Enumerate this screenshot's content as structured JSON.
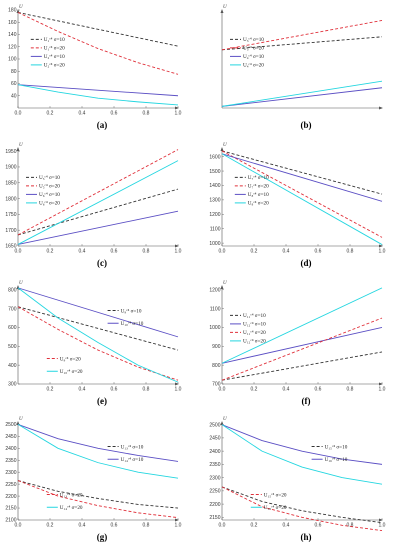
{
  "chart_data": [
    {
      "panel": "(a)",
      "type": "line",
      "ylabel": "U",
      "xlabel": "",
      "xlim": [
        0,
        1
      ],
      "ylim": [
        20,
        180
      ],
      "xticks": [
        "0.0",
        "0.2",
        "0.4",
        "0.6",
        "0.8",
        "1.0"
      ],
      "xtick_vals": [
        0,
        0.2,
        0.4,
        0.6,
        0.8,
        1.0
      ],
      "yticks": [
        "40",
        "60",
        "80",
        "100",
        "120",
        "140",
        "160",
        "180"
      ],
      "ytick_vals": [
        40,
        60,
        80,
        100,
        120,
        140,
        160,
        180
      ],
      "legend_pos": "right",
      "series": [
        {
          "name": "U₁ᶜ⁴ σ=10",
          "color": "#333333",
          "dash": "3,2",
          "x": [
            0,
            1
          ],
          "y": [
            176,
            121
          ]
        },
        {
          "name": "U₁ᶜ⁴ σ=20",
          "color": "#e0303a",
          "dash": "3,2",
          "x": [
            0,
            0.25,
            0.5,
            0.75,
            1
          ],
          "y": [
            176,
            145,
            117,
            94,
            75
          ]
        },
        {
          "name": "U₂ᶜ⁴ σ=10",
          "color": "#5b4fc4",
          "dash": "",
          "x": [
            0,
            1
          ],
          "y": [
            58,
            40
          ]
        },
        {
          "name": "U₂ᶜ⁴ σ=20",
          "color": "#24d6e0",
          "dash": "",
          "x": [
            0,
            0.25,
            0.5,
            0.75,
            1
          ],
          "y": [
            58,
            46,
            36,
            30,
            25
          ]
        }
      ]
    },
    {
      "panel": "(b)",
      "type": "line",
      "ylabel": "U",
      "xlabel": "",
      "xlim": [
        0,
        1
      ],
      "ylim": [
        0,
        300
      ],
      "xticks": [],
      "xtick_vals": [],
      "yticks": [],
      "ytick_vals": [],
      "legend_pos": "left",
      "series": [
        {
          "name": "U₃ᶜ⁴ σ=10",
          "color": "#333333",
          "dash": "3,2",
          "x": [
            0,
            1
          ],
          "y": [
            178,
            218
          ]
        },
        {
          "name": "U₃ᶜ⁴ σ=20",
          "color": "#e0303a",
          "dash": "3,2",
          "x": [
            0,
            1
          ],
          "y": [
            178,
            268
          ]
        },
        {
          "name": "U₄ᶜ⁴ σ=10",
          "color": "#5b4fc4",
          "dash": "",
          "x": [
            0,
            1
          ],
          "y": [
            5,
            62
          ]
        },
        {
          "name": "U₄ᶜ⁴ σ=20",
          "color": "#24d6e0",
          "dash": "",
          "x": [
            0,
            1
          ],
          "y": [
            5,
            82
          ]
        }
      ]
    },
    {
      "panel": "(c)",
      "type": "line",
      "ylabel": "U",
      "xlabel": "",
      "xlim": [
        0,
        1
      ],
      "ylim": [
        1650,
        1960
      ],
      "xticks": [
        "0.0",
        "0.2",
        "0.4",
        "0.6",
        "0.8",
        "1.0"
      ],
      "xtick_vals": [
        0,
        0.2,
        0.4,
        0.6,
        0.8,
        1.0
      ],
      "yticks": [
        "1650",
        "1700",
        "1750",
        "1800",
        "1850",
        "1900",
        "1950"
      ],
      "ytick_vals": [
        1650,
        1700,
        1750,
        1800,
        1850,
        1900,
        1950
      ],
      "legend_pos": "left",
      "series": [
        {
          "name": "U₅ᶜ⁴ σ=10",
          "color": "#333333",
          "dash": "3,2",
          "x": [
            0,
            1
          ],
          "y": [
            1685,
            1830
          ]
        },
        {
          "name": "U₅ᶜ⁴ σ=20",
          "color": "#e0303a",
          "dash": "3,2",
          "x": [
            0,
            1
          ],
          "y": [
            1685,
            1955
          ]
        },
        {
          "name": "U₆ᶜ⁴ σ=10",
          "color": "#5b4fc4",
          "dash": "",
          "x": [
            0,
            1
          ],
          "y": [
            1655,
            1760
          ]
        },
        {
          "name": "U₆ᶜ⁴ σ=20",
          "color": "#24d6e0",
          "dash": "",
          "x": [
            0,
            1
          ],
          "y": [
            1655,
            1920
          ]
        }
      ]
    },
    {
      "panel": "(d)",
      "type": "line",
      "ylabel": "U",
      "xlabel": "",
      "xlim": [
        0,
        1
      ],
      "ylim": [
        980,
        1660
      ],
      "xticks": [
        "0.0",
        "0.2",
        "0.4",
        "0.6",
        "0.8",
        "1.0"
      ],
      "xtick_vals": [
        0,
        0.2,
        0.4,
        0.6,
        0.8,
        1.0
      ],
      "yticks": [
        "1000",
        "1100",
        "1200",
        "1300",
        "1400",
        "1500",
        "1600"
      ],
      "ytick_vals": [
        1000,
        1100,
        1200,
        1300,
        1400,
        1500,
        1600
      ],
      "legend_pos": "right",
      "series": [
        {
          "name": "U₇ᶜ⁴ σ=10",
          "color": "#333333",
          "dash": "3,2",
          "x": [
            0,
            1
          ],
          "y": [
            1640,
            1340
          ]
        },
        {
          "name": "U₇ᶜ⁴ σ=20",
          "color": "#e0303a",
          "dash": "3,2",
          "x": [
            0,
            1
          ],
          "y": [
            1640,
            1040
          ]
        },
        {
          "name": "U₈ᶜ⁴ σ=10",
          "color": "#5b4fc4",
          "dash": "",
          "x": [
            0,
            1
          ],
          "y": [
            1620,
            1290
          ]
        },
        {
          "name": "U₈ᶜ⁴ σ=20",
          "color": "#24d6e0",
          "dash": "",
          "x": [
            0,
            1
          ],
          "y": [
            1620,
            990
          ]
        }
      ]
    },
    {
      "panel": "(e)",
      "type": "line",
      "ylabel": "U",
      "xlabel": "",
      "xlim": [
        0,
        1
      ],
      "ylim": [
        300,
        820
      ],
      "xticks": [
        "0.2",
        "0.4",
        "0.6",
        "0.8",
        "1.0"
      ],
      "xtick_vals": [
        0.2,
        0.4,
        0.6,
        0.8,
        1.0
      ],
      "yticks": [
        "300",
        "400",
        "500",
        "600",
        "700",
        "800"
      ],
      "ytick_vals": [
        300,
        400,
        500,
        600,
        700,
        800
      ],
      "legend_pos": "split",
      "series": [
        {
          "name": "U₉ᶜ⁴ σ=10",
          "color": "#333333",
          "dash": "3,2",
          "x": [
            0,
            1
          ],
          "y": [
            710,
            480
          ]
        },
        {
          "name": "U₁₀ᶜ⁴ σ=10",
          "color": "#5b4fc4",
          "dash": "",
          "x": [
            0,
            1
          ],
          "y": [
            810,
            550
          ]
        },
        {
          "name": "U₉ᶜ⁴ σ=20",
          "color": "#e0303a",
          "dash": "3,2",
          "x": [
            0,
            0.25,
            0.5,
            0.75,
            1
          ],
          "y": [
            710,
            590,
            480,
            390,
            320
          ]
        },
        {
          "name": "U₁₀ᶜ⁴ σ=20",
          "color": "#24d6e0",
          "dash": "",
          "x": [
            0,
            0.25,
            0.5,
            0.75,
            1
          ],
          "y": [
            810,
            650,
            520,
            400,
            310
          ]
        }
      ]
    },
    {
      "panel": "(f)",
      "type": "line",
      "ylabel": "U",
      "xlabel": "",
      "xlim": [
        0,
        1
      ],
      "ylim": [
        700,
        1220
      ],
      "xticks": [
        "0.0",
        "0.2",
        "0.4",
        "0.6",
        "0.8",
        "1.0"
      ],
      "xtick_vals": [
        0,
        0.2,
        0.4,
        0.6,
        0.8,
        1.0
      ],
      "yticks": [
        "700",
        "800",
        "900",
        "1000",
        "1100",
        "1200"
      ],
      "ytick_vals": [
        700,
        800,
        900,
        1000,
        1100,
        1200
      ],
      "legend_pos": "left",
      "series": [
        {
          "name": "U₁₁ᶜ⁴ σ=10",
          "color": "#333333",
          "dash": "3,2",
          "x": [
            0,
            1
          ],
          "y": [
            720,
            870
          ]
        },
        {
          "name": "U₁₂ᶜ⁴ σ=10",
          "color": "#5b4fc4",
          "dash": "",
          "x": [
            0,
            1
          ],
          "y": [
            810,
            1000
          ]
        },
        {
          "name": "U₁₁ᶜ⁴ σ=20",
          "color": "#e0303a",
          "dash": "3,2",
          "x": [
            0,
            1
          ],
          "y": [
            720,
            1050
          ]
        },
        {
          "name": "U₁₂ᶜ⁴ σ=20",
          "color": "#24d6e0",
          "dash": "",
          "x": [
            0,
            1
          ],
          "y": [
            810,
            1210
          ]
        }
      ]
    },
    {
      "panel": "(g)",
      "type": "line",
      "ylabel": "U",
      "xlabel": "",
      "xlim": [
        0,
        1
      ],
      "ylim": [
        2100,
        2510
      ],
      "xticks": [
        "0.0",
        "0.2",
        "0.4",
        "0.6",
        "0.8",
        "1.0"
      ],
      "xtick_vals": [
        0,
        0.2,
        0.4,
        0.6,
        0.8,
        1.0
      ],
      "yticks": [
        "2100",
        "2150",
        "2200",
        "2250",
        "2300",
        "2350",
        "2400",
        "2450",
        "2500"
      ],
      "ytick_vals": [
        2100,
        2150,
        2200,
        2250,
        2300,
        2350,
        2400,
        2450,
        2500
      ],
      "legend_pos": "split",
      "series": [
        {
          "name": "U₁₃ᶜ⁴ σ=10",
          "color": "#333333",
          "dash": "3,2",
          "x": [
            0,
            0.25,
            0.5,
            0.75,
            1
          ],
          "y": [
            2265,
            2220,
            2190,
            2165,
            2150
          ]
        },
        {
          "name": "U₁₄ᶜ⁴ σ=10",
          "color": "#5b4fc4",
          "dash": "",
          "x": [
            0,
            0.25,
            0.5,
            0.75,
            1
          ],
          "y": [
            2500,
            2440,
            2400,
            2370,
            2345
          ]
        },
        {
          "name": "U₁₃ᶜ⁴ σ=20",
          "color": "#e0303a",
          "dash": "3,2",
          "x": [
            0,
            0.25,
            0.5,
            0.75,
            1
          ],
          "y": [
            2265,
            2200,
            2160,
            2130,
            2110
          ]
        },
        {
          "name": "U₁₄ᶜ⁴ σ=20",
          "color": "#24d6e0",
          "dash": "",
          "x": [
            0,
            0.25,
            0.5,
            0.75,
            1
          ],
          "y": [
            2500,
            2400,
            2340,
            2300,
            2275
          ]
        }
      ]
    },
    {
      "panel": "(h)",
      "type": "line",
      "ylabel": "U",
      "xlabel": "",
      "xlim": [
        0,
        1
      ],
      "ylim": [
        2140,
        2510
      ],
      "xticks": [
        "0.0",
        "0.2",
        "0.4",
        "0.6",
        "0.8",
        "1.0"
      ],
      "xtick_vals": [
        0,
        0.2,
        0.4,
        0.6,
        0.8,
        1.0
      ],
      "yticks": [
        "2150",
        "2200",
        "2250",
        "2300",
        "2350",
        "2400",
        "2450",
        "2500"
      ],
      "ytick_vals": [
        2150,
        2200,
        2250,
        2300,
        2350,
        2400,
        2450,
        2500
      ],
      "legend_pos": "split",
      "series": [
        {
          "name": "U₁₅ᶜ⁴ σ=10",
          "color": "#333333",
          "dash": "3,2",
          "x": [
            0,
            0.25,
            0.5,
            0.75,
            1
          ],
          "y": [
            2265,
            2210,
            2175,
            2150,
            2130
          ]
        },
        {
          "name": "U₁₆ᶜ⁴ σ=10",
          "color": "#5b4fc4",
          "dash": "",
          "x": [
            0,
            0.25,
            0.5,
            0.75,
            1
          ],
          "y": [
            2500,
            2440,
            2400,
            2370,
            2350
          ]
        },
        {
          "name": "U₁₅ᶜ⁴ σ=20",
          "color": "#e0303a",
          "dash": "3,2",
          "x": [
            0,
            0.25,
            0.5,
            0.75,
            1
          ],
          "y": [
            2265,
            2190,
            2150,
            2120,
            2100
          ]
        },
        {
          "name": "U₁₆ᶜ⁴ σ=20",
          "color": "#24d6e0",
          "dash": "",
          "x": [
            0,
            0.25,
            0.5,
            0.75,
            1
          ],
          "y": [
            2500,
            2400,
            2340,
            2300,
            2275
          ]
        }
      ]
    }
  ]
}
